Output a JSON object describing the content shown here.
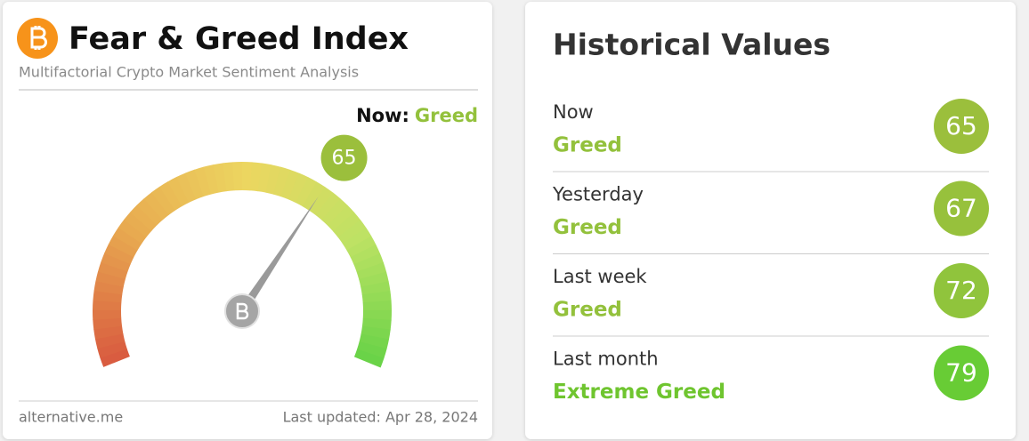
{
  "header": {
    "title": "Fear & Greed Index",
    "subtitle": "Multifactorial Crypto Market Sentiment Analysis"
  },
  "gauge": {
    "now_label": "Now:",
    "classification": "Greed",
    "classification_color": "#93c13c",
    "value": 65,
    "range": [
      0,
      100
    ]
  },
  "footer": {
    "source": "alternative.me",
    "updated": "Last updated: Apr 28, 2024"
  },
  "historical": {
    "title": "Historical Values",
    "rows": [
      {
        "period": "Now",
        "classification": "Greed",
        "value": 65,
        "color": "#9bbf3c",
        "text_color": "#93c13c"
      },
      {
        "period": "Yesterday",
        "classification": "Greed",
        "value": 67,
        "color": "#97c13c",
        "text_color": "#93c13c"
      },
      {
        "period": "Last week",
        "classification": "Greed",
        "value": 72,
        "color": "#90c43c",
        "text_color": "#93c13c"
      },
      {
        "period": "Last month",
        "classification": "Extreme Greed",
        "value": 79,
        "color": "#68cc35",
        "text_color": "#6fc52f"
      }
    ]
  }
}
